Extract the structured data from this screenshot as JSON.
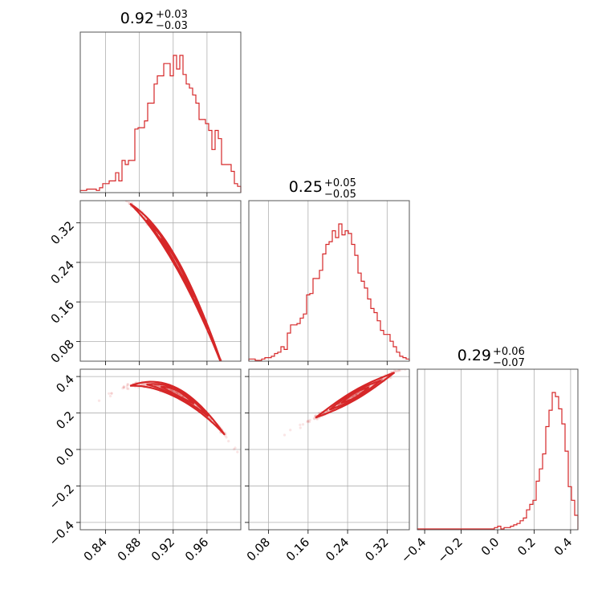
{
  "chart_data": {
    "type": "corner",
    "color": "#d62728",
    "grid": true,
    "parameters": [
      {
        "index": 0,
        "median": "0.92",
        "plus": "+0.03",
        "minus": "−0.03",
        "range": [
          0.81,
          1.0
        ],
        "ticks": [
          "0.84",
          "0.88",
          "0.92",
          "0.96"
        ]
      },
      {
        "index": 1,
        "median": "0.25",
        "plus": "+0.05",
        "minus": "−0.05",
        "range": [
          0.04,
          0.365
        ],
        "ticks": [
          "0.08",
          "0.16",
          "0.24",
          "0.32"
        ]
      },
      {
        "index": 2,
        "median": "0.29",
        "plus": "+0.06",
        "minus": "−0.07",
        "range": [
          -0.44,
          0.44
        ],
        "ticks": [
          "−0.4",
          "−0.2",
          "0.0",
          "0.2",
          "0.4"
        ]
      }
    ],
    "histograms": [
      {
        "param": 0,
        "edges_range": [
          0.81,
          1.0
        ],
        "bins": 50,
        "counts": [
          0.01,
          0.01,
          0.02,
          0.02,
          0.02,
          0.01,
          0.03,
          0.06,
          0.06,
          0.08,
          0.08,
          0.14,
          0.08,
          0.23,
          0.2,
          0.23,
          0.23,
          0.46,
          0.47,
          0.47,
          0.52,
          0.65,
          0.65,
          0.79,
          0.85,
          0.85,
          0.94,
          0.94,
          0.85,
          1.0,
          0.9,
          1.0,
          0.86,
          0.79,
          0.76,
          0.71,
          0.65,
          0.53,
          0.53,
          0.5,
          0.45,
          0.31,
          0.45,
          0.39,
          0.2,
          0.2,
          0.2,
          0.15,
          0.06,
          0.04
        ]
      },
      {
        "param": 1,
        "edges_range": [
          0.04,
          0.365
        ],
        "bins": 50,
        "counts": [
          0.01,
          0.01,
          0.0,
          0.0,
          0.01,
          0.02,
          0.02,
          0.03,
          0.05,
          0.06,
          0.1,
          0.08,
          0.2,
          0.26,
          0.26,
          0.27,
          0.31,
          0.34,
          0.48,
          0.49,
          0.6,
          0.6,
          0.66,
          0.78,
          0.85,
          0.87,
          0.95,
          0.9,
          1.0,
          0.92,
          0.95,
          0.93,
          0.85,
          0.77,
          0.64,
          0.58,
          0.53,
          0.45,
          0.38,
          0.35,
          0.29,
          0.22,
          0.19,
          0.19,
          0.14,
          0.1,
          0.06,
          0.03,
          0.02,
          0.01
        ]
      },
      {
        "param": 2,
        "edges_range": [
          -0.44,
          0.44
        ],
        "bins": 50,
        "counts": [
          0,
          0,
          0,
          0,
          0,
          0,
          0,
          0,
          0,
          0,
          0,
          0,
          0,
          0,
          0,
          0,
          0,
          0,
          0,
          0,
          0,
          0,
          0,
          0,
          0.01,
          0.02,
          0.0,
          0.01,
          0.01,
          0.02,
          0.03,
          0.04,
          0.06,
          0.08,
          0.14,
          0.18,
          0.21,
          0.35,
          0.44,
          0.55,
          0.75,
          0.87,
          1.0,
          0.97,
          0.88,
          0.77,
          0.57,
          0.31,
          0.21,
          0.1
        ]
      }
    ],
    "scatter": [
      {
        "x_param": 0,
        "y_param": 1,
        "relation": "y ≈ 0.25 − 2.9·(x − 0.92) − 15·(x − 0.92)²"
      },
      {
        "x_param": 0,
        "y_param": 2,
        "relation": "y ≈ 0.32 − 2.1·(x − 0.92) − 30·(x − 0.92)²"
      },
      {
        "x_param": 1,
        "y_param": 2,
        "relation": "y ≈ 0.29 + 1.55·(x − 0.25)"
      }
    ]
  }
}
